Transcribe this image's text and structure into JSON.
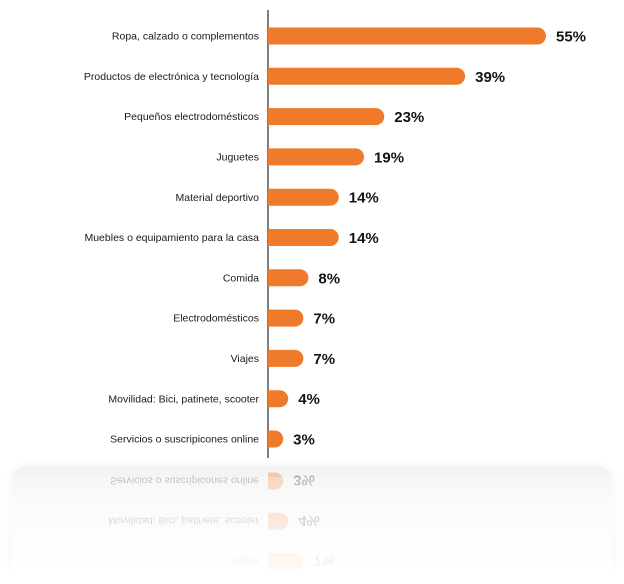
{
  "chart_data": {
    "type": "bar",
    "orientation": "horizontal",
    "categories": [
      "Ropa, calzado o complementos",
      "Productos de electrónica y tecnología",
      "Pequeños electrodomésticos",
      "Juguetes",
      "Material deportivo",
      "Muebles o equipamiento para la casa",
      "Comida",
      "Electrodomésticos",
      "Viajes",
      "Movilidad: Bici, patinete, scooter",
      "Servicios o suscripicones online"
    ],
    "values": [
      55,
      39,
      23,
      19,
      14,
      14,
      8,
      7,
      7,
      4,
      3
    ],
    "value_labels": [
      "55%",
      "39%",
      "23%",
      "19%",
      "14%",
      "14%",
      "8%",
      "7%",
      "7%",
      "4%",
      "3%"
    ],
    "xlim": [
      0,
      55
    ],
    "grid": false,
    "colors": {
      "bar": "#f07a2b",
      "axis": "#555555",
      "text": "#1a1a1a"
    }
  }
}
